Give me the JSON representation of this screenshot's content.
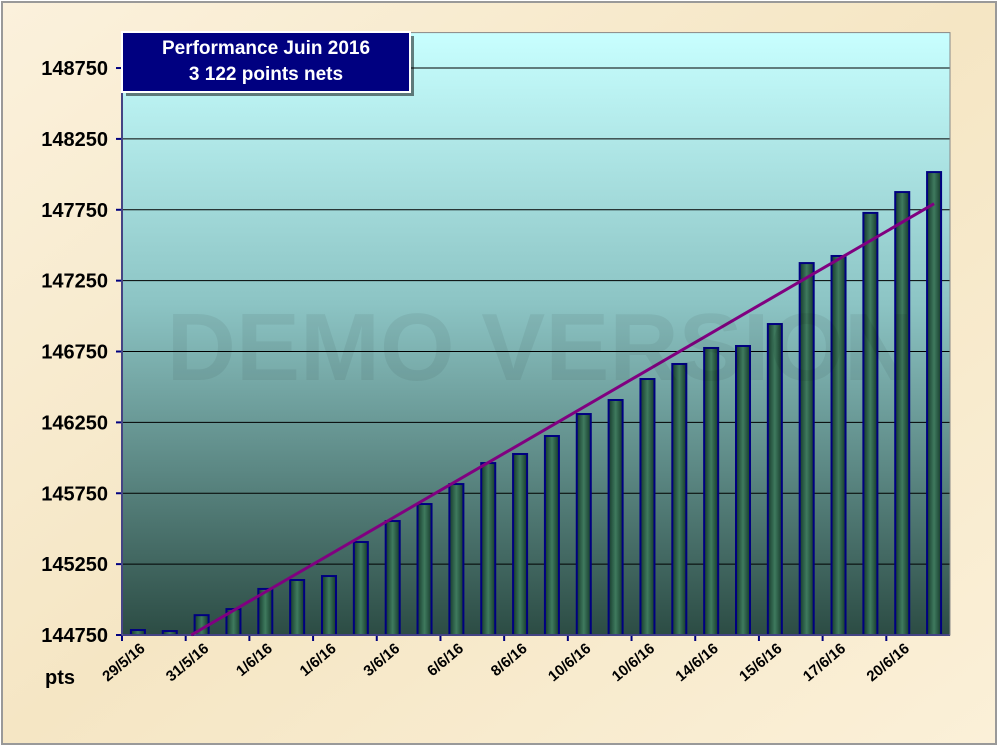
{
  "chart_data": {
    "type": "bar",
    "title": [
      "Performance  Juin  2016",
      "3 122 points nets"
    ],
    "y_label": "pts",
    "watermark": "DEMO VERSION",
    "categories": [
      "29/5/16",
      null,
      "31/5/16",
      null,
      "1/6/16",
      null,
      "1/6/16",
      null,
      "3/6/16",
      null,
      "6/6/16",
      null,
      "8/6/16",
      null,
      "10/6/16",
      null,
      "10/6/16",
      null,
      "14/6/16",
      null,
      "15/6/16",
      null,
      "17/6/16",
      null,
      "20/6/16",
      null
    ],
    "values": [
      144785,
      144778,
      144890,
      144933,
      145075,
      145138,
      145166,
      145406,
      145554,
      145674,
      145815,
      145963,
      146027,
      146154,
      146309,
      146408,
      146556,
      146662,
      146775,
      146789,
      146944,
      147374,
      147424,
      147728,
      147875,
      148016
    ],
    "color": "#1f4a3a",
    "ylim": [
      144750,
      149000
    ],
    "yticks": [
      144750,
      145250,
      145750,
      146250,
      146750,
      147250,
      147750,
      148250,
      148750
    ],
    "grid": true,
    "trendline": true,
    "trendline_color": "#800080"
  }
}
